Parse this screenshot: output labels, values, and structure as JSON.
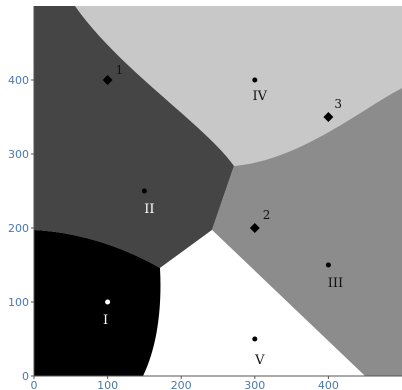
{
  "chart_data": {
    "type": "voronoi",
    "xlim": [
      0,
      500
    ],
    "ylim": [
      0,
      500
    ],
    "x_ticks": [
      0,
      100,
      200,
      300,
      400
    ],
    "y_ticks": [
      0,
      100,
      200,
      300,
      400
    ],
    "x_tick_labels": [
      "0",
      "100",
      "200",
      "300",
      "400"
    ],
    "y_tick_labels": [
      "0",
      "100",
      "200",
      "300",
      "400"
    ],
    "sites": [
      {
        "label": "I",
        "x": 100,
        "y": 100,
        "marker": "dot"
      },
      {
        "label": "II",
        "x": 150,
        "y": 250,
        "marker": "dot"
      },
      {
        "label": "III",
        "x": 400,
        "y": 150,
        "marker": "dot"
      },
      {
        "label": "IV",
        "x": 300,
        "y": 400,
        "marker": "dot"
      },
      {
        "label": "V",
        "x": 300,
        "y": 50,
        "marker": "dot"
      },
      {
        "label": "1",
        "x": 100,
        "y": 400,
        "marker": "diamond"
      },
      {
        "label": "2",
        "x": 300,
        "y": 200,
        "marker": "diamond"
      },
      {
        "label": "3",
        "x": 400,
        "y": 350,
        "marker": "diamond"
      }
    ],
    "region_colors": {
      "I": "#000000",
      "II": "#454545",
      "III": "#8c8c8c",
      "IV": "#c8c8c8",
      "V": "#ffffff"
    }
  }
}
